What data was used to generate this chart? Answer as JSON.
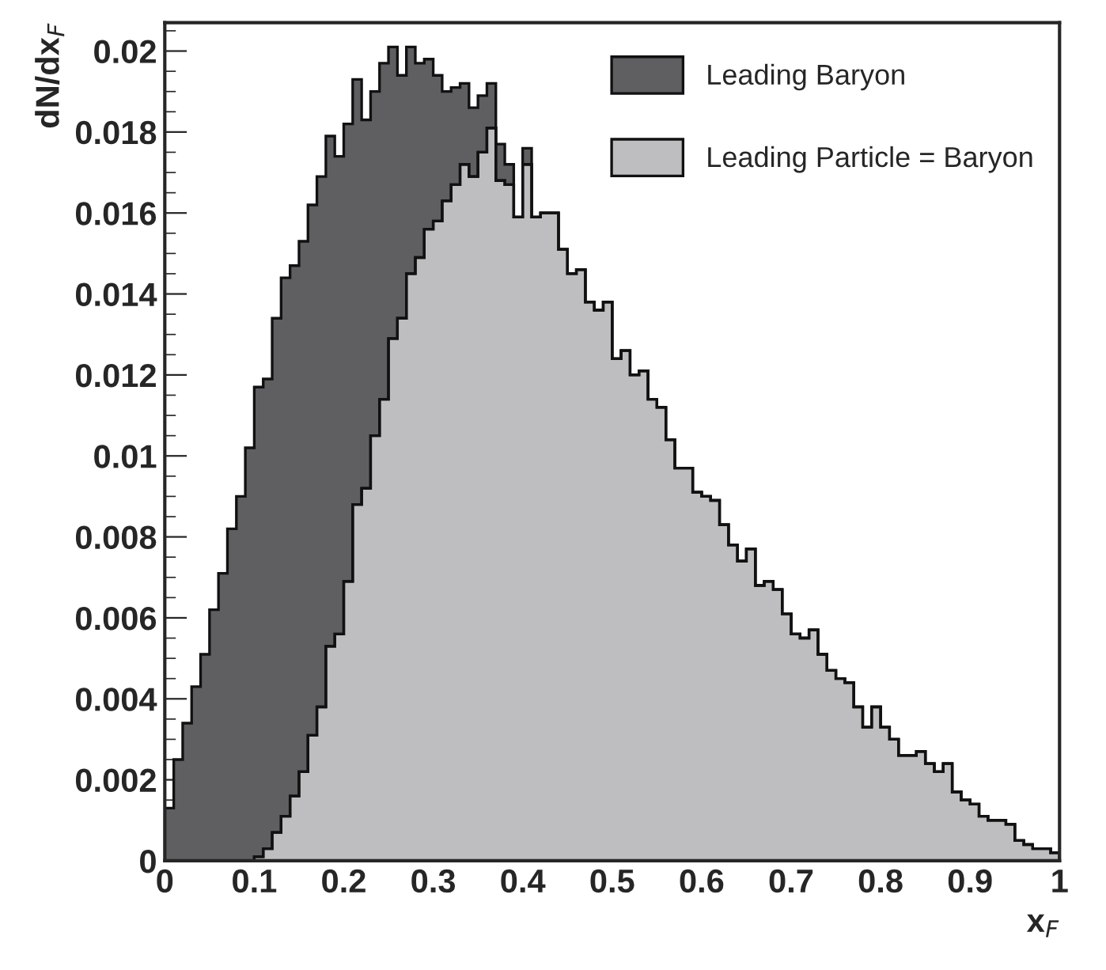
{
  "chart_data": {
    "type": "histogram",
    "xlabel": "x$_{F}$",
    "ylabel": "dN/dx$_{F}$",
    "bins": [
      0,
      0.01,
      0.02,
      0.03,
      0.04,
      0.05,
      0.06,
      0.07,
      0.08,
      0.09,
      0.1,
      0.11,
      0.12,
      0.13,
      0.14,
      0.15,
      0.16,
      0.17,
      0.18,
      0.19,
      0.2,
      0.21,
      0.22,
      0.23,
      0.24,
      0.25,
      0.26,
      0.27,
      0.28,
      0.29,
      0.3,
      0.31,
      0.32,
      0.33,
      0.34,
      0.35,
      0.36,
      0.37,
      0.38,
      0.39,
      0.4,
      0.41,
      0.42,
      0.43,
      0.44,
      0.45,
      0.46,
      0.47,
      0.48,
      0.49,
      0.5,
      0.51,
      0.52,
      0.53,
      0.54,
      0.55,
      0.56,
      0.57,
      0.58,
      0.59,
      0.6,
      0.61,
      0.62,
      0.63,
      0.64,
      0.65,
      0.66,
      0.67,
      0.68,
      0.69,
      0.7,
      0.71,
      0.72,
      0.73,
      0.74,
      0.75,
      0.76,
      0.77,
      0.78,
      0.79,
      0.8,
      0.81,
      0.82,
      0.83,
      0.84,
      0.85,
      0.86,
      0.87,
      0.88,
      0.89,
      0.9,
      0.91,
      0.92,
      0.93,
      0.94,
      0.95,
      0.96,
      0.97,
      0.98,
      0.99,
      1
    ],
    "series": [
      {
        "name": "Leading Baryon",
        "color": "#5f5f62",
        "values": [
          0.0013,
          0.0025,
          0.0034,
          0.0043,
          0.0051,
          0.0062,
          0.0071,
          0.0082,
          0.009,
          0.0102,
          0.0117,
          0.0119,
          0.0134,
          0.0144,
          0.0147,
          0.0153,
          0.0162,
          0.0169,
          0.0179,
          0.0174,
          0.0182,
          0.0193,
          0.0183,
          0.019,
          0.0197,
          0.0201,
          0.0194,
          0.0201,
          0.0197,
          0.0198,
          0.0194,
          0.019,
          0.0191,
          0.0192,
          0.0186,
          0.0189,
          0.0192,
          0.0177,
          0.0172,
          0.0159,
          0.0176,
          0.0159,
          0.016,
          0.016,
          0.0151,
          0.0145,
          0.0146,
          0.0138,
          0.0136,
          0.0138,
          0.0124,
          0.0126,
          0.012,
          0.0121,
          0.0114,
          0.0112,
          0.0104,
          0.0097,
          0.0097,
          0.0091,
          0.009,
          0.0089,
          0.0083,
          0.0078,
          0.0074,
          0.0077,
          0.0068,
          0.0069,
          0.0067,
          0.0061,
          0.0056,
          0.0055,
          0.0057,
          0.0051,
          0.0047,
          0.0045,
          0.0044,
          0.0038,
          0.0033,
          0.0038,
          0.0033,
          0.003,
          0.0026,
          0.0026,
          0.0027,
          0.0024,
          0.0022,
          0.0024,
          0.0017,
          0.0015,
          0.0014,
          0.0011,
          0.001,
          0.001,
          0.0009,
          0.0005,
          0.0004,
          0.0003,
          0.0003,
          0.0002
        ]
      },
      {
        "name": "Leading Particle = Baryon",
        "color": "#bebec0",
        "values": [
          0,
          0,
          0,
          0,
          0,
          0,
          0,
          0,
          0,
          0,
          0.0001,
          0.0003,
          0.0007,
          0.0011,
          0.0016,
          0.0022,
          0.0031,
          0.0038,
          0.0053,
          0.0056,
          0.0069,
          0.0088,
          0.0092,
          0.0105,
          0.0114,
          0.0129,
          0.0134,
          0.0145,
          0.0149,
          0.0156,
          0.0158,
          0.0163,
          0.0167,
          0.0172,
          0.0169,
          0.0175,
          0.0181,
          0.0168,
          0.0167,
          0.0159,
          0.0172,
          0.0159,
          0.016,
          0.016,
          0.0151,
          0.0145,
          0.0146,
          0.0138,
          0.0136,
          0.0138,
          0.0124,
          0.0126,
          0.012,
          0.0121,
          0.0114,
          0.0112,
          0.0104,
          0.0097,
          0.0097,
          0.0091,
          0.009,
          0.0089,
          0.0083,
          0.0078,
          0.0074,
          0.0077,
          0.0068,
          0.0069,
          0.0067,
          0.0061,
          0.0056,
          0.0055,
          0.0057,
          0.0051,
          0.0047,
          0.0045,
          0.0044,
          0.0038,
          0.0033,
          0.0038,
          0.0033,
          0.003,
          0.0026,
          0.0026,
          0.0027,
          0.0024,
          0.0022,
          0.0024,
          0.0017,
          0.0015,
          0.0014,
          0.0011,
          0.001,
          0.001,
          0.0009,
          0.0005,
          0.0004,
          0.0003,
          0.0003,
          0.0002
        ]
      }
    ],
    "xlim": [
      0,
      1
    ],
    "xticks": [
      0,
      0.1,
      0.2,
      0.3,
      0.4,
      0.5,
      0.6,
      0.7,
      0.8,
      0.9,
      1
    ],
    "ylim": [
      0,
      0.0207
    ],
    "yticks": [
      0,
      0.002,
      0.004,
      0.006,
      0.008,
      0.01,
      0.012,
      0.014,
      0.016,
      0.018,
      0.02
    ],
    "grid": false,
    "legend": "top right"
  }
}
